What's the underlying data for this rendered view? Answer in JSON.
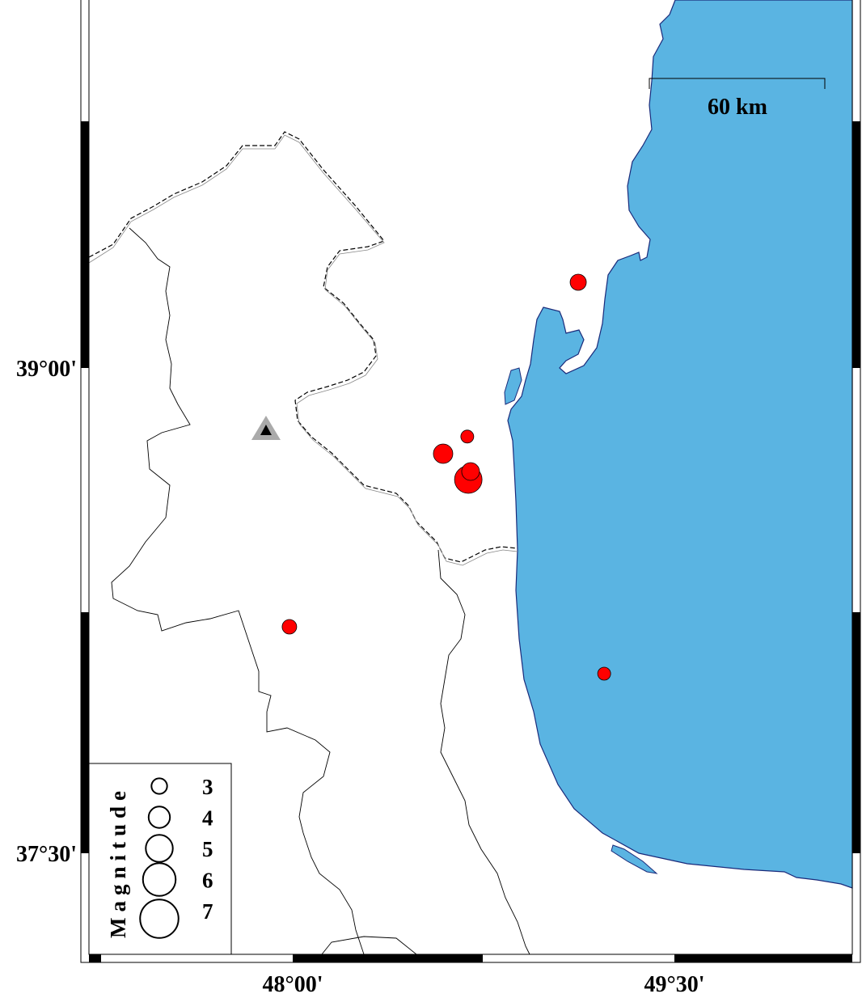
{
  "map": {
    "colors": {
      "sea": "#5ab4e2",
      "coast": "#1a2a7a",
      "event": "#ff0000",
      "station": "#aaaaaa"
    },
    "lat_labels": [
      {
        "value": 39.0,
        "label": "39°00'"
      },
      {
        "value": 37.5,
        "label": "37°30'"
      }
    ],
    "lon_labels": [
      {
        "value": 48.0,
        "label": "48°00'"
      },
      {
        "value": 49.5,
        "label": "49°30'"
      }
    ],
    "scale_bar": {
      "label": "60 km"
    },
    "station": {
      "icon": "triangle-icon",
      "lon": 47.895,
      "lat": 38.81
    },
    "events": [
      {
        "lon": 49.122,
        "lat": 39.265,
        "magnitude": 2.75
      },
      {
        "lon": 48.686,
        "lat": 38.788,
        "magnitude": 2.25
      },
      {
        "lon": 48.591,
        "lat": 38.735,
        "magnitude": 3.25
      },
      {
        "lon": 48.69,
        "lat": 38.655,
        "magnitude": 4.5
      },
      {
        "lon": 48.699,
        "lat": 38.68,
        "magnitude": 3.0
      },
      {
        "lon": 47.987,
        "lat": 38.2,
        "magnitude": 2.5
      },
      {
        "lon": 49.224,
        "lat": 38.055,
        "magnitude": 2.25
      }
    ],
    "legend": {
      "title": "Magnitude",
      "entries": [
        {
          "magnitude": 3,
          "label": "3"
        },
        {
          "magnitude": 4,
          "label": "4"
        },
        {
          "magnitude": 5,
          "label": "5"
        },
        {
          "magnitude": 6,
          "label": "6"
        },
        {
          "magnitude": 7,
          "label": "7"
        }
      ]
    }
  }
}
